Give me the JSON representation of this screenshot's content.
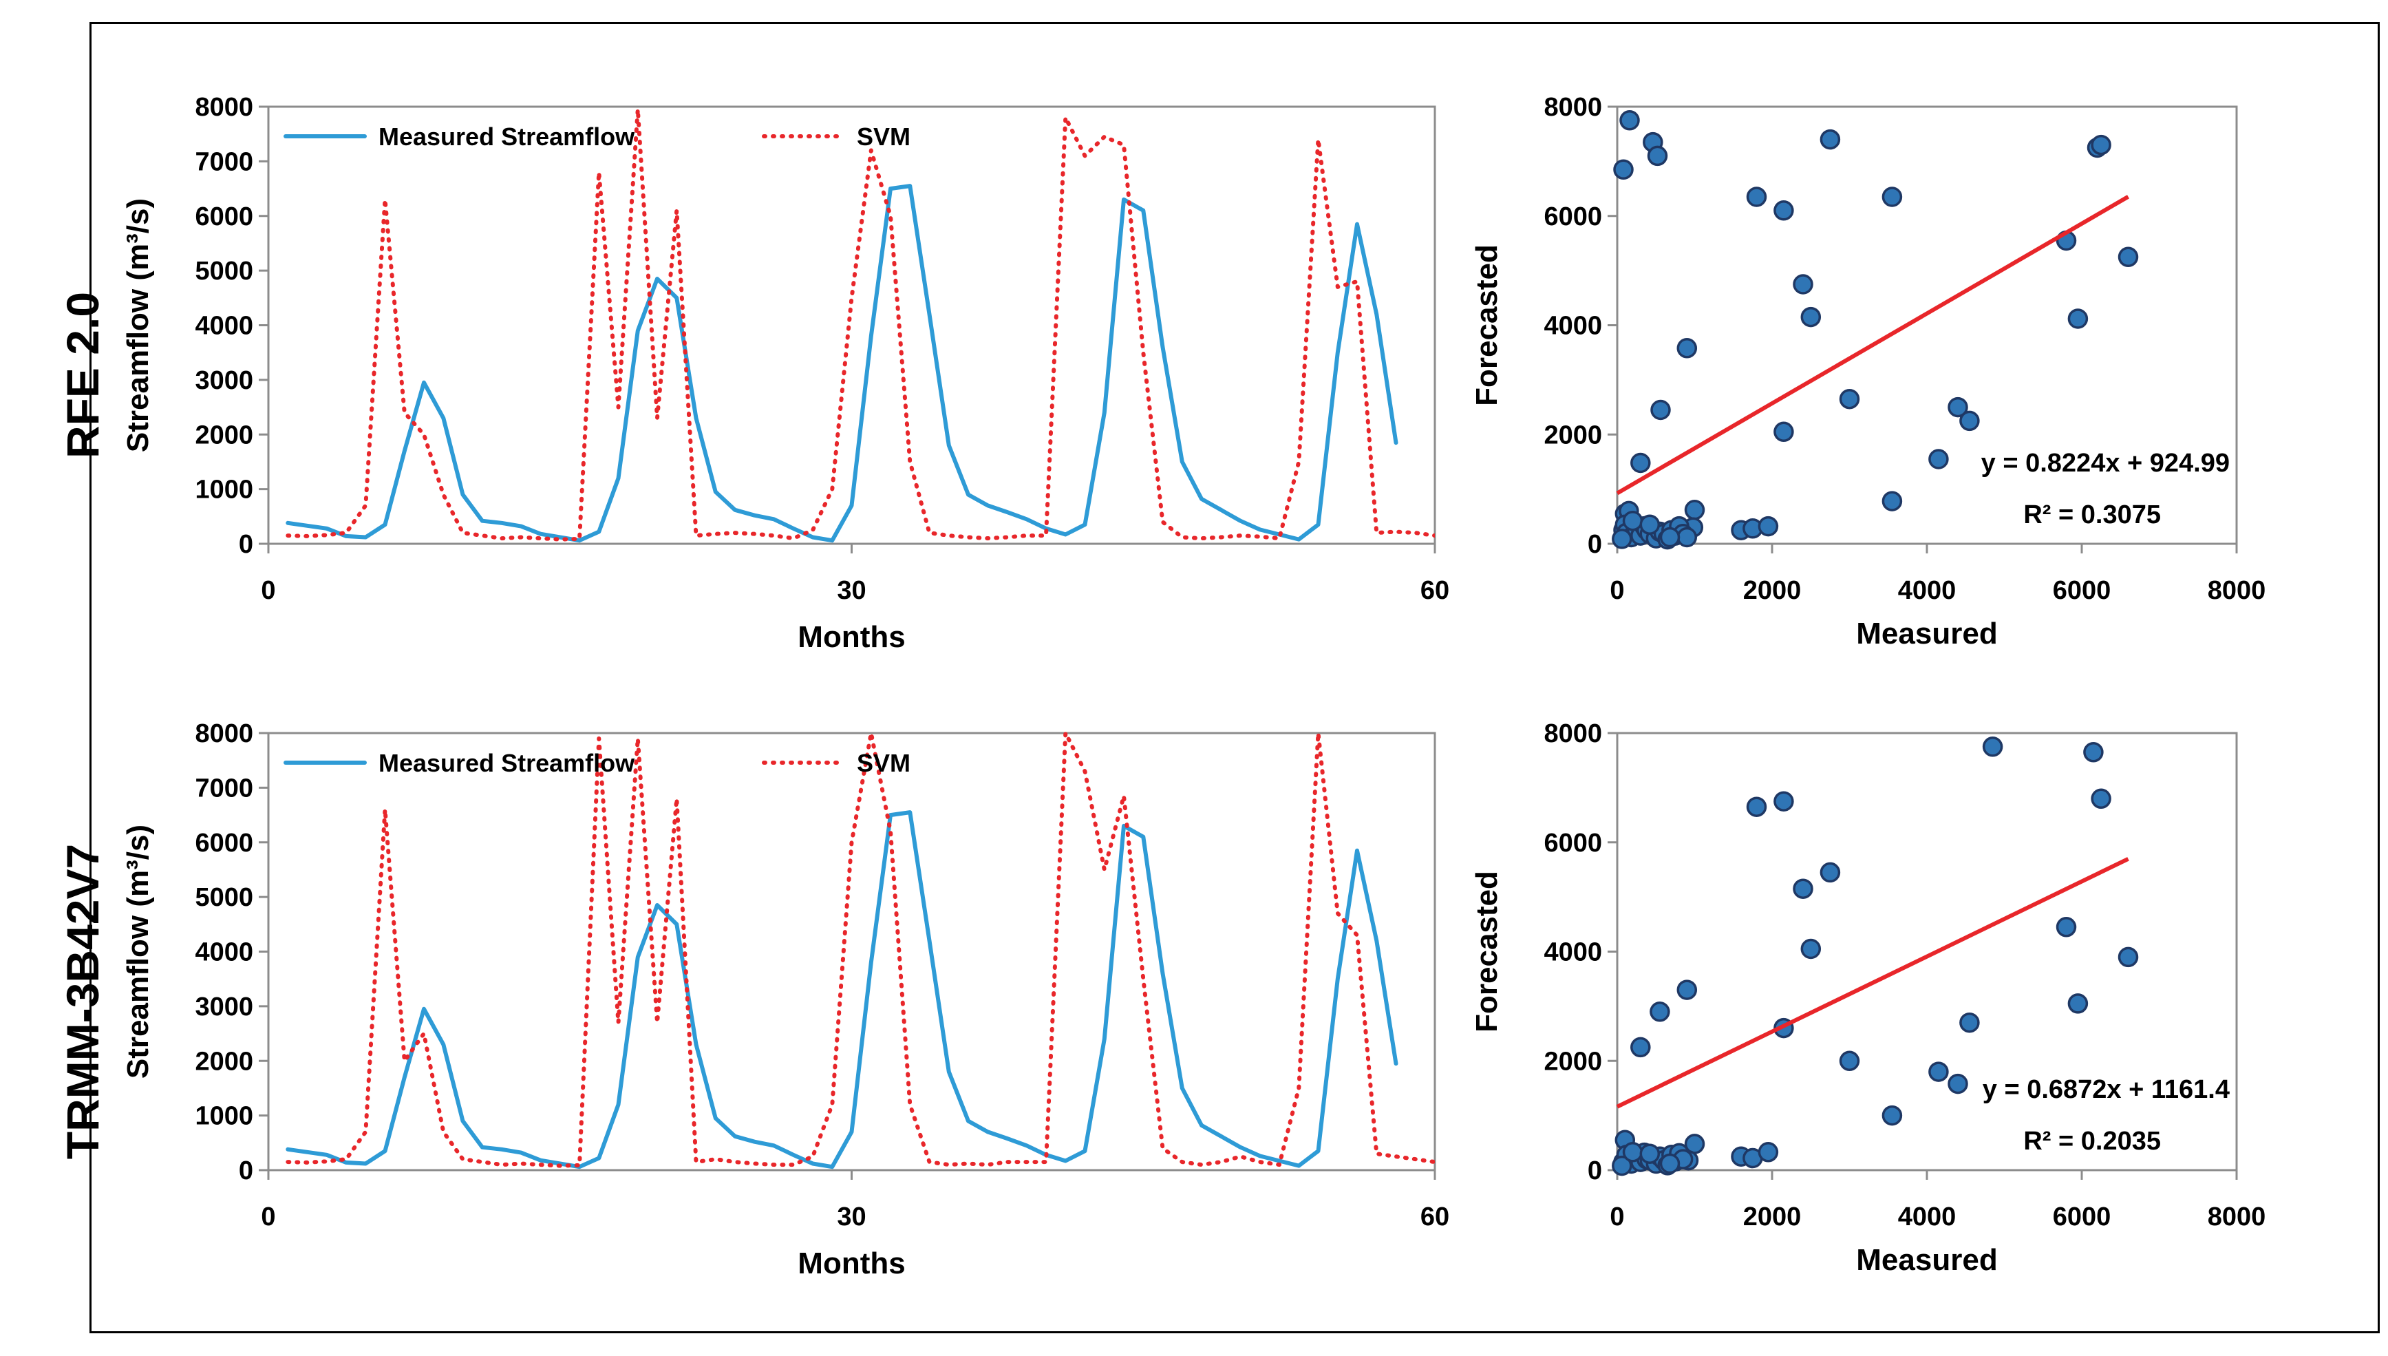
{
  "row_labels": [
    "RFE 2.0",
    "TRMM-3B42V7"
  ],
  "colors": {
    "measured": "#2e9bd6",
    "svm": "#e8262a",
    "scatter_fill": "#2f75b5",
    "scatter_edge": "#1f3864",
    "trend": "#e8262a"
  },
  "chart_data": [
    {
      "type": "line",
      "panel": "RFE 2.0",
      "xlabel": "Months",
      "ylabel": "Streamflow (m³/s)",
      "xlim": [
        0,
        60
      ],
      "ylim": [
        0,
        8000
      ],
      "xticks": [
        0,
        30,
        60
      ],
      "yticks": [
        0,
        1000,
        2000,
        3000,
        4000,
        5000,
        6000,
        7000,
        8000
      ],
      "legend": "top-left",
      "series": [
        {
          "name": "Measured Streamflow",
          "style": "solid",
          "x": [
            1,
            2,
            3,
            4,
            5,
            6,
            7,
            8,
            9,
            10,
            11,
            12,
            13,
            14,
            15,
            16,
            17,
            18,
            19,
            20,
            21,
            22,
            23,
            24,
            25,
            26,
            27,
            28,
            29,
            30,
            31,
            32,
            33,
            34,
            35,
            36,
            37,
            38,
            39,
            40,
            41,
            42,
            43,
            44,
            45,
            46,
            47,
            48,
            49,
            50,
            51,
            52,
            53,
            54,
            55,
            56,
            57,
            58
          ],
          "y": [
            380,
            330,
            280,
            140,
            120,
            350,
            1700,
            2950,
            2300,
            900,
            420,
            380,
            320,
            180,
            120,
            60,
            220,
            1200,
            3900,
            4850,
            4500,
            2300,
            950,
            620,
            520,
            450,
            280,
            120,
            60,
            700,
            3800,
            6500,
            6550,
            4200,
            1800,
            900,
            700,
            580,
            450,
            280,
            170,
            350,
            2400,
            6300,
            6100,
            3600,
            1500,
            820,
            620,
            420,
            260,
            170,
            80,
            350,
            3500,
            5850,
            4200,
            1850
          ]
        },
        {
          "name": "SVM",
          "style": "dotted",
          "x": [
            1,
            2,
            3,
            4,
            5,
            6,
            7,
            8,
            9,
            10,
            11,
            12,
            13,
            14,
            15,
            16,
            17,
            18,
            19,
            20,
            21,
            22,
            23,
            24,
            25,
            26,
            27,
            28,
            29,
            30,
            31,
            32,
            33,
            34,
            35,
            36,
            37,
            38,
            39,
            40,
            41,
            42,
            43,
            44,
            45,
            46,
            47,
            48,
            49,
            50,
            51,
            52,
            53,
            54,
            55,
            56,
            57,
            58,
            59,
            60
          ],
          "y": [
            150,
            140,
            160,
            200,
            700,
            6300,
            2400,
            2000,
            900,
            200,
            150,
            100,
            120,
            100,
            80,
            90,
            6800,
            2500,
            7950,
            2300,
            6100,
            150,
            180,
            200,
            180,
            150,
            100,
            250,
            1000,
            4500,
            7200,
            6000,
            1500,
            200,
            150,
            120,
            100,
            120,
            150,
            150,
            7800,
            7100,
            7450,
            7300,
            3500,
            400,
            120,
            100,
            120,
            150,
            130,
            100,
            1500,
            7400,
            4700,
            4800,
            200,
            220,
            200,
            150
          ]
        }
      ]
    },
    {
      "type": "scatter",
      "panel": "RFE 2.0",
      "xlabel": "Measured",
      "ylabel": "Forecasted",
      "xlim": [
        0,
        8000
      ],
      "ylim": [
        0,
        8000
      ],
      "xticks": [
        0,
        2000,
        4000,
        6000,
        8000
      ],
      "yticks": [
        0,
        2000,
        4000,
        6000,
        8000
      ],
      "equation": "y = 0.8224x + 924.99",
      "r2": "R² = 0.3075",
      "trendline": {
        "slope": 0.8224,
        "intercept": 924.99,
        "x_range": [
          0,
          6600
        ]
      },
      "points": [
        [
          80,
          6850
        ],
        [
          160,
          7750
        ],
        [
          460,
          7350
        ],
        [
          520,
          7100
        ],
        [
          560,
          2450
        ],
        [
          300,
          1480
        ],
        [
          900,
          3580
        ],
        [
          1800,
          6350
        ],
        [
          2150,
          6100
        ],
        [
          2400,
          4750
        ],
        [
          2500,
          4150
        ],
        [
          2750,
          7400
        ],
        [
          3000,
          2650
        ],
        [
          3550,
          6350
        ],
        [
          3550,
          780
        ],
        [
          4150,
          1550
        ],
        [
          4400,
          2500
        ],
        [
          4550,
          2250
        ],
        [
          5800,
          5550
        ],
        [
          5950,
          4120
        ],
        [
          6200,
          7250
        ],
        [
          6250,
          7300
        ],
        [
          6600,
          5250
        ],
        [
          2150,
          2050
        ],
        [
          1000,
          620
        ],
        [
          1600,
          250
        ],
        [
          1750,
          280
        ],
        [
          1950,
          320
        ],
        [
          920,
          230
        ],
        [
          980,
          300
        ],
        [
          100,
          550
        ],
        [
          150,
          600
        ],
        [
          80,
          250
        ],
        [
          100,
          350
        ],
        [
          120,
          200
        ],
        [
          180,
          120
        ],
        [
          250,
          280
        ],
        [
          300,
          150
        ],
        [
          350,
          320
        ],
        [
          380,
          250
        ],
        [
          420,
          180
        ],
        [
          500,
          100
        ],
        [
          550,
          220
        ],
        [
          600,
          180
        ],
        [
          650,
          80
        ],
        [
          700,
          250
        ],
        [
          750,
          150
        ],
        [
          800,
          320
        ],
        [
          850,
          180
        ],
        [
          900,
          120
        ],
        [
          60,
          90
        ],
        [
          200,
          420
        ],
        [
          420,
          350
        ],
        [
          680,
          120
        ]
      ]
    },
    {
      "type": "line",
      "panel": "TRMM-3B42V7",
      "xlabel": "Months",
      "ylabel": "Streamflow (m³/s)",
      "xlim": [
        0,
        60
      ],
      "ylim": [
        0,
        8000
      ],
      "xticks": [
        0,
        30,
        60
      ],
      "yticks": [
        0,
        1000,
        2000,
        3000,
        4000,
        5000,
        6000,
        7000,
        8000
      ],
      "legend": "top-left",
      "series": [
        {
          "name": "Measured Streamflow",
          "style": "solid",
          "x": [
            1,
            2,
            3,
            4,
            5,
            6,
            7,
            8,
            9,
            10,
            11,
            12,
            13,
            14,
            15,
            16,
            17,
            18,
            19,
            20,
            21,
            22,
            23,
            24,
            25,
            26,
            27,
            28,
            29,
            30,
            31,
            32,
            33,
            34,
            35,
            36,
            37,
            38,
            39,
            40,
            41,
            42,
            43,
            44,
            45,
            46,
            47,
            48,
            49,
            50,
            51,
            52,
            53,
            54,
            55,
            56,
            57,
            58
          ],
          "y": [
            380,
            330,
            280,
            140,
            120,
            350,
            1700,
            2950,
            2300,
            900,
            420,
            380,
            320,
            180,
            120,
            60,
            220,
            1200,
            3900,
            4850,
            4500,
            2300,
            950,
            620,
            520,
            450,
            280,
            120,
            60,
            700,
            3800,
            6500,
            6550,
            4200,
            1800,
            900,
            700,
            580,
            450,
            280,
            170,
            350,
            2400,
            6300,
            6100,
            3600,
            1500,
            820,
            620,
            420,
            260,
            170,
            80,
            350,
            3500,
            5850,
            4200,
            1950
          ]
        },
        {
          "name": "SVM",
          "style": "dotted",
          "x": [
            1,
            2,
            3,
            4,
            5,
            6,
            7,
            8,
            9,
            10,
            11,
            12,
            13,
            14,
            15,
            16,
            17,
            18,
            19,
            20,
            21,
            22,
            23,
            24,
            25,
            26,
            27,
            28,
            29,
            30,
            31,
            32,
            33,
            34,
            35,
            36,
            37,
            38,
            39,
            40,
            41,
            42,
            43,
            44,
            45,
            46,
            47,
            48,
            49,
            50,
            51,
            52,
            53,
            54,
            55,
            56,
            57,
            58,
            59,
            60
          ],
          "y": [
            150,
            140,
            160,
            200,
            700,
            6600,
            2000,
            2500,
            700,
            200,
            150,
            100,
            120,
            100,
            80,
            90,
            7900,
            2700,
            7900,
            2700,
            6800,
            150,
            200,
            150,
            120,
            100,
            100,
            250,
            1200,
            6000,
            8000,
            6200,
            1200,
            150,
            100,
            120,
            100,
            150,
            150,
            150,
            8000,
            7300,
            5500,
            6850,
            3500,
            400,
            150,
            100,
            150,
            250,
            150,
            100,
            1500,
            8000,
            4700,
            4300,
            300,
            250,
            200,
            150
          ]
        }
      ]
    },
    {
      "type": "scatter",
      "panel": "TRMM-3B42V7",
      "xlabel": "Measured",
      "ylabel": "Forecasted",
      "xlim": [
        0,
        8000
      ],
      "ylim": [
        0,
        8000
      ],
      "xticks": [
        0,
        2000,
        4000,
        6000,
        8000
      ],
      "yticks": [
        0,
        2000,
        4000,
        6000,
        8000
      ],
      "equation": "y = 0.6872x + 1161.4",
      "r2": "R² = 0.2035",
      "trendline": {
        "slope": 0.6872,
        "intercept": 1161.4,
        "x_range": [
          0,
          6600
        ]
      },
      "points": [
        [
          4850,
          7750
        ],
        [
          6150,
          7650
        ],
        [
          6250,
          6800
        ],
        [
          1800,
          6650
        ],
        [
          2150,
          6750
        ],
        [
          2750,
          5450
        ],
        [
          2400,
          5150
        ],
        [
          2500,
          4050
        ],
        [
          6600,
          3900
        ],
        [
          5800,
          4450
        ],
        [
          5950,
          3050
        ],
        [
          3000,
          2000
        ],
        [
          3550,
          1000
        ],
        [
          4150,
          1800
        ],
        [
          4400,
          1580
        ],
        [
          4550,
          2700
        ],
        [
          2150,
          2600
        ],
        [
          900,
          3300
        ],
        [
          550,
          2900
        ],
        [
          300,
          2250
        ],
        [
          1600,
          250
        ],
        [
          1750,
          220
        ],
        [
          1950,
          330
        ],
        [
          1000,
          480
        ],
        [
          920,
          180
        ],
        [
          100,
          550
        ],
        [
          150,
          200
        ],
        [
          80,
          150
        ],
        [
          120,
          280
        ],
        [
          180,
          120
        ],
        [
          250,
          260
        ],
        [
          300,
          150
        ],
        [
          350,
          320
        ],
        [
          380,
          200
        ],
        [
          420,
          180
        ],
        [
          500,
          120
        ],
        [
          550,
          250
        ],
        [
          600,
          180
        ],
        [
          650,
          90
        ],
        [
          700,
          280
        ],
        [
          750,
          160
        ],
        [
          800,
          310
        ],
        [
          850,
          200
        ],
        [
          60,
          80
        ],
        [
          200,
          330
        ],
        [
          420,
          300
        ],
        [
          680,
          120
        ]
      ]
    }
  ]
}
